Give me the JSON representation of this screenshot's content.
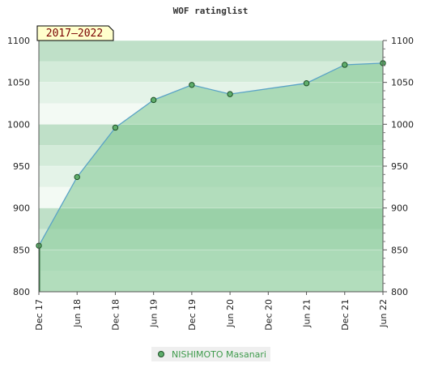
{
  "chart_data": {
    "type": "area",
    "title": "WOF ratinglist",
    "period_label": "2017–2022",
    "x_tick_labels": [
      "Dec 17",
      "Jun 18",
      "Dec 18",
      "Jun 19",
      "Dec 19",
      "Jun 20",
      "Dec 20",
      "Jun 21",
      "Dec 21",
      "Jun 22"
    ],
    "y_tick_labels": [
      "800",
      "850",
      "900",
      "950",
      "1000",
      "1050",
      "1100"
    ],
    "ylim": [
      800,
      1100
    ],
    "y_tick_step": 50,
    "grid": true,
    "legend_position": "bottom-center",
    "series": [
      {
        "name": "NISHIMOTO Masanari",
        "points": [
          {
            "x": "Dec 17",
            "y": 855
          },
          {
            "x": "Jun 18",
            "y": 937
          },
          {
            "x": "Dec 18",
            "y": 996
          },
          {
            "x": "Jun 19",
            "y": 1029
          },
          {
            "x": "Dec 19",
            "y": 1047
          },
          {
            "x": "Jun 20",
            "y": 1036
          },
          {
            "x": "Jun 21",
            "y": 1049
          },
          {
            "x": "Dec 21",
            "y": 1071
          },
          {
            "x": "Jun 22",
            "y": 1073
          }
        ]
      }
    ],
    "colors": {
      "fill": "#7bc48e",
      "line": "#5aa3c6",
      "marker": "#5fae6c",
      "marker_edge": "#1d4f26",
      "badge_bg": "#ffffcc",
      "badge_text": "#7a0000"
    }
  }
}
